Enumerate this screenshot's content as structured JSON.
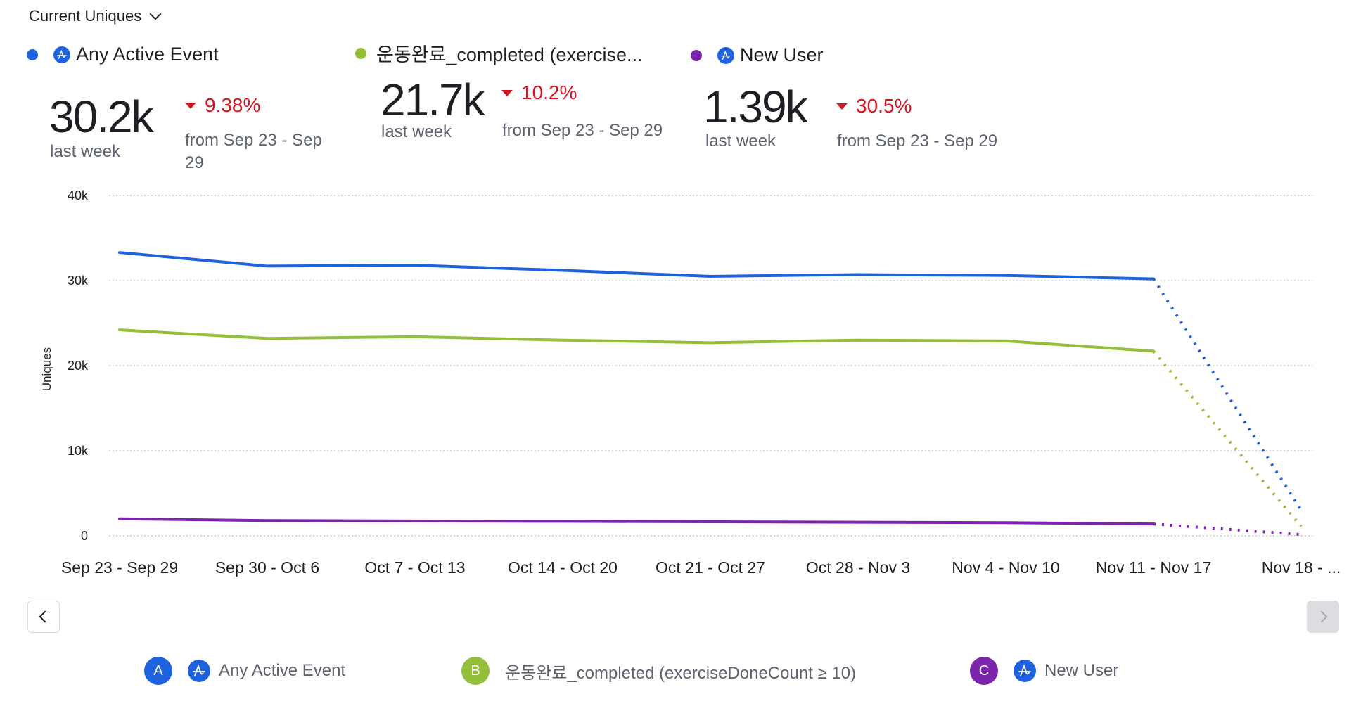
{
  "header": {
    "metric_selector": "Current Uniques"
  },
  "metrics": [
    {
      "name": "Any Active Event",
      "has_app_icon": true,
      "color": "#1f62e0",
      "value": "30.2k",
      "value_label": "last week",
      "delta": "9.38%",
      "delta_direction": "down",
      "delta_compare": "from Sep 23 - Sep 29"
    },
    {
      "name": "운동완료_completed (exercise...",
      "has_app_icon": false,
      "color": "#93bf3a",
      "value": "21.7k",
      "value_label": "last week",
      "delta": "10.2%",
      "delta_direction": "down",
      "delta_compare": "from Sep 23 - Sep 29"
    },
    {
      "name": "New User",
      "has_app_icon": true,
      "color": "#7b24ac",
      "value": "1.39k",
      "value_label": "last week",
      "delta": "30.5%",
      "delta_direction": "down",
      "delta_compare": "from Sep 23 - Sep 29"
    }
  ],
  "legend": [
    {
      "badge": "A",
      "label": "Any Active Event",
      "color": "#1f62e0",
      "has_app_icon": true
    },
    {
      "badge": "B",
      "label": "운동완료_completed (exerciseDoneCount ≥ 10)",
      "color": "#93bf3a",
      "has_app_icon": false
    },
    {
      "badge": "C",
      "label": "New User",
      "color": "#7b24ac",
      "has_app_icon": true
    }
  ],
  "navigation": {
    "prev_icon": "chevron-left-icon",
    "next_icon": "chevron-right-icon",
    "next_disabled": true
  },
  "chart_data": {
    "type": "line",
    "title": "",
    "xlabel": "",
    "ylabel": "Uniques",
    "ylim": [
      0,
      40000
    ],
    "yticks": [
      0,
      10000,
      20000,
      30000,
      40000
    ],
    "ytick_labels": [
      "0",
      "10k",
      "20k",
      "30k",
      "40k"
    ],
    "grid": true,
    "categories": [
      "Sep 23 - Sep 29",
      "Sep 30 - Oct 6",
      "Oct 7 - Oct 13",
      "Oct 14 - Oct 20",
      "Oct 21 - Oct 27",
      "Oct 28 - Nov 3",
      "Nov 4 - Nov 10",
      "Nov 11 - Nov 17",
      "Nov 18 - ..."
    ],
    "incomplete_from_index": 7,
    "series": [
      {
        "name": "Any Active Event",
        "color": "#1f62e0",
        "values": [
          33300,
          31700,
          31800,
          31200,
          30500,
          30700,
          30600,
          30200,
          3000
        ]
      },
      {
        "name": "운동완료_completed (exerciseDoneCount ≥ 10)",
        "color": "#93bf3a",
        "values": [
          24200,
          23200,
          23400,
          23000,
          22700,
          23000,
          22900,
          21700,
          1100
        ]
      },
      {
        "name": "New User",
        "color": "#7b24ac",
        "values": [
          2000,
          1800,
          1750,
          1700,
          1650,
          1600,
          1550,
          1390,
          150
        ]
      }
    ]
  }
}
